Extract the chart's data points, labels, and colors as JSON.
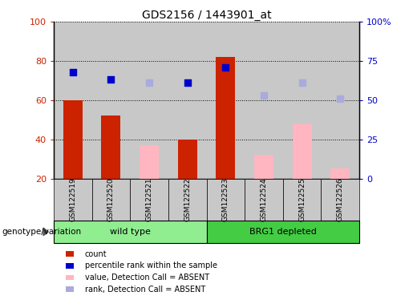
{
  "title": "GDS2156 / 1443901_at",
  "samples": [
    "GSM122519",
    "GSM122520",
    "GSM122521",
    "GSM122522",
    "GSM122523",
    "GSM122524",
    "GSM122525",
    "GSM122526"
  ],
  "count_present": [
    60,
    52,
    null,
    40,
    82,
    null,
    null,
    null
  ],
  "count_absent": [
    null,
    null,
    37,
    null,
    null,
    32,
    48,
    25
  ],
  "rank_present": [
    68,
    63,
    null,
    61,
    71,
    null,
    null,
    null
  ],
  "rank_absent": [
    null,
    null,
    61,
    null,
    null,
    53,
    61,
    51
  ],
  "ylim_left": [
    20,
    100
  ],
  "yticks_left": [
    20,
    40,
    60,
    80,
    100
  ],
  "yticks_right": [
    0,
    25,
    50,
    75,
    100
  ],
  "yticklabels_right": [
    "0",
    "25",
    "50",
    "75",
    "100%"
  ],
  "color_count": "#CC2200",
  "color_rank": "#0000CC",
  "color_count_absent": "#FFB6C1",
  "color_rank_absent": "#AAAADD",
  "bar_width": 0.5,
  "legend_items": [
    {
      "color": "#CC2200",
      "label": "count"
    },
    {
      "color": "#0000CC",
      "label": "percentile rank within the sample"
    },
    {
      "color": "#FFB6C1",
      "label": "value, Detection Call = ABSENT"
    },
    {
      "color": "#AAAADD",
      "label": "rank, Detection Call = ABSENT"
    }
  ],
  "xlabel_group": "genotype/variation",
  "group_label_1": "wild type",
  "group_label_2": "BRG1 depleted",
  "wt_color": "#90EE90",
  "brg_color": "#44CC44",
  "col_bg_color": "#C8C8C8"
}
